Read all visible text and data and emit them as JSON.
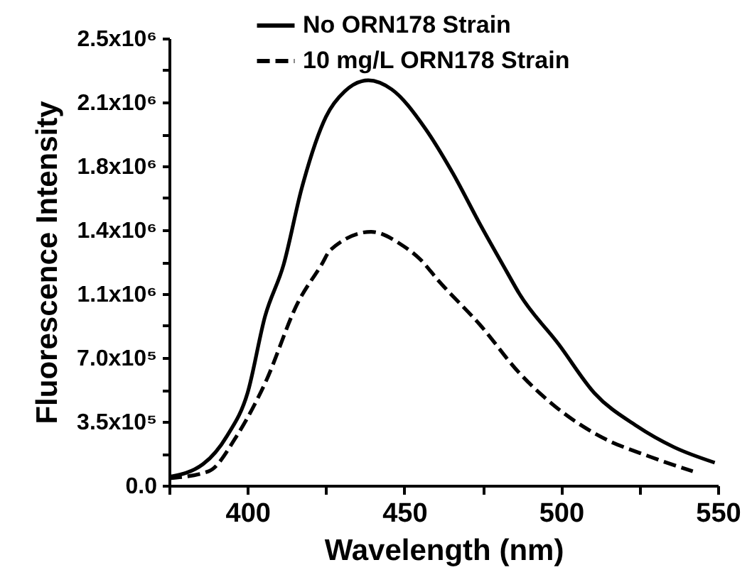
{
  "chart_data": {
    "type": "line",
    "xlabel": "Wavelength (nm)",
    "ylabel": "Fluorescence Intensity",
    "xlim": [
      375,
      550
    ],
    "xticks": [
      {
        "value": 375,
        "label": null
      },
      400,
      {
        "value": 425,
        "label": null
      },
      450,
      {
        "value": 475,
        "label": null
      },
      500,
      {
        "value": 525,
        "label": null
      },
      550
    ],
    "ylim": [
      0,
      2450000
    ],
    "yticks": [
      {
        "value": 0,
        "label": "0.0"
      },
      {
        "value": 175000,
        "label": null
      },
      {
        "value": 350000,
        "label": "3.5x10⁵"
      },
      {
        "value": 525000,
        "label": null
      },
      {
        "value": 700000,
        "label": "7.0x10⁵"
      },
      {
        "value": 875000,
        "label": null
      },
      {
        "value": 1050000,
        "label": "1.1x10⁶"
      },
      {
        "value": 1225000,
        "label": null
      },
      {
        "value": 1400000,
        "label": "1.4x10⁶"
      },
      {
        "value": 1575000,
        "label": null
      },
      {
        "value": 1750000,
        "label": "1.8x10⁶"
      },
      {
        "value": 1925000,
        "label": null
      },
      {
        "value": 2100000,
        "label": "2.1x10⁶"
      },
      {
        "value": 2275000,
        "label": null
      },
      {
        "value": 2450000,
        "label": "2.5x10⁶"
      }
    ],
    "grid": false,
    "legend": "top",
    "marker": "none",
    "series": [
      {
        "name": "No ORN178 Strain",
        "color": "#000000",
        "line_style": "solid",
        "x": [
          375,
          385.8,
          393.5,
          400,
          405.6,
          411.5,
          417.3,
          425,
          431,
          438.5,
          446,
          456.5,
          465.5,
          474.5,
          482.7,
          486.7,
          499.3,
          510.6,
          524,
          536,
          549
        ],
        "values": [
          47000,
          117000,
          273000,
          507000,
          928000,
          1210000,
          1630000,
          2020000,
          2160000,
          2220000,
          2170000,
          1960000,
          1710000,
          1420000,
          1170000,
          1050000,
          772000,
          507000,
          327000,
          210000,
          125000
        ]
      },
      {
        "name": "10 mg/L ORN178 Strain",
        "color": "#000000",
        "line_style": "dashed",
        "x": [
          375,
          387.6,
          396.6,
          405.6,
          416,
          423.6,
          426.4,
          439.4,
          449,
          455,
          461,
          474.5,
          486.7,
          498.4,
          512,
          528.6,
          542
        ],
        "values": [
          39000,
          78000,
          273000,
          561000,
          1000000,
          1210000,
          1290000,
          1390000,
          1320000,
          1240000,
          1120000,
          873000,
          616000,
          429000,
          273000,
          156000,
          78000
        ]
      }
    ]
  }
}
